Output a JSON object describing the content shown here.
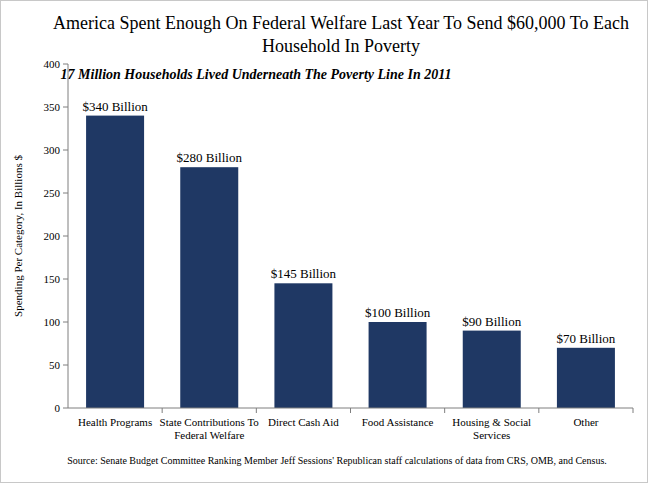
{
  "chart_data": {
    "type": "bar",
    "title": "America Spent Enough On Federal Welfare Last Year To Send $60,000 To Each Household In Poverty",
    "subtitle": "17 Million Households Lived Underneath The Poverty Line In 2011",
    "y_label": "Spending Per Category, In Billions $",
    "categories": [
      "Health Programs",
      "State Contributions To Federal Welfare",
      "Direct Cash Aid",
      "Food Assistance",
      "Housing & Social Services",
      "Other"
    ],
    "values": [
      340,
      280,
      145,
      100,
      90,
      70
    ],
    "value_labels": [
      "$340 Billion",
      "$280 Billion",
      "$145 Billion",
      "$100 Billion",
      "$90 Billion",
      "$70 Billion"
    ],
    "color": "#1f3864",
    "ylim": [
      0,
      400
    ],
    "yticks": [
      0,
      50,
      100,
      150,
      200,
      250,
      300,
      350,
      400
    ],
    "grid": false,
    "data_labels": true,
    "source": "Source: Senate Budget Committee Ranking Member Jeff Sessions' Republican staff calculations of data from CRS, OMB, and Census."
  }
}
